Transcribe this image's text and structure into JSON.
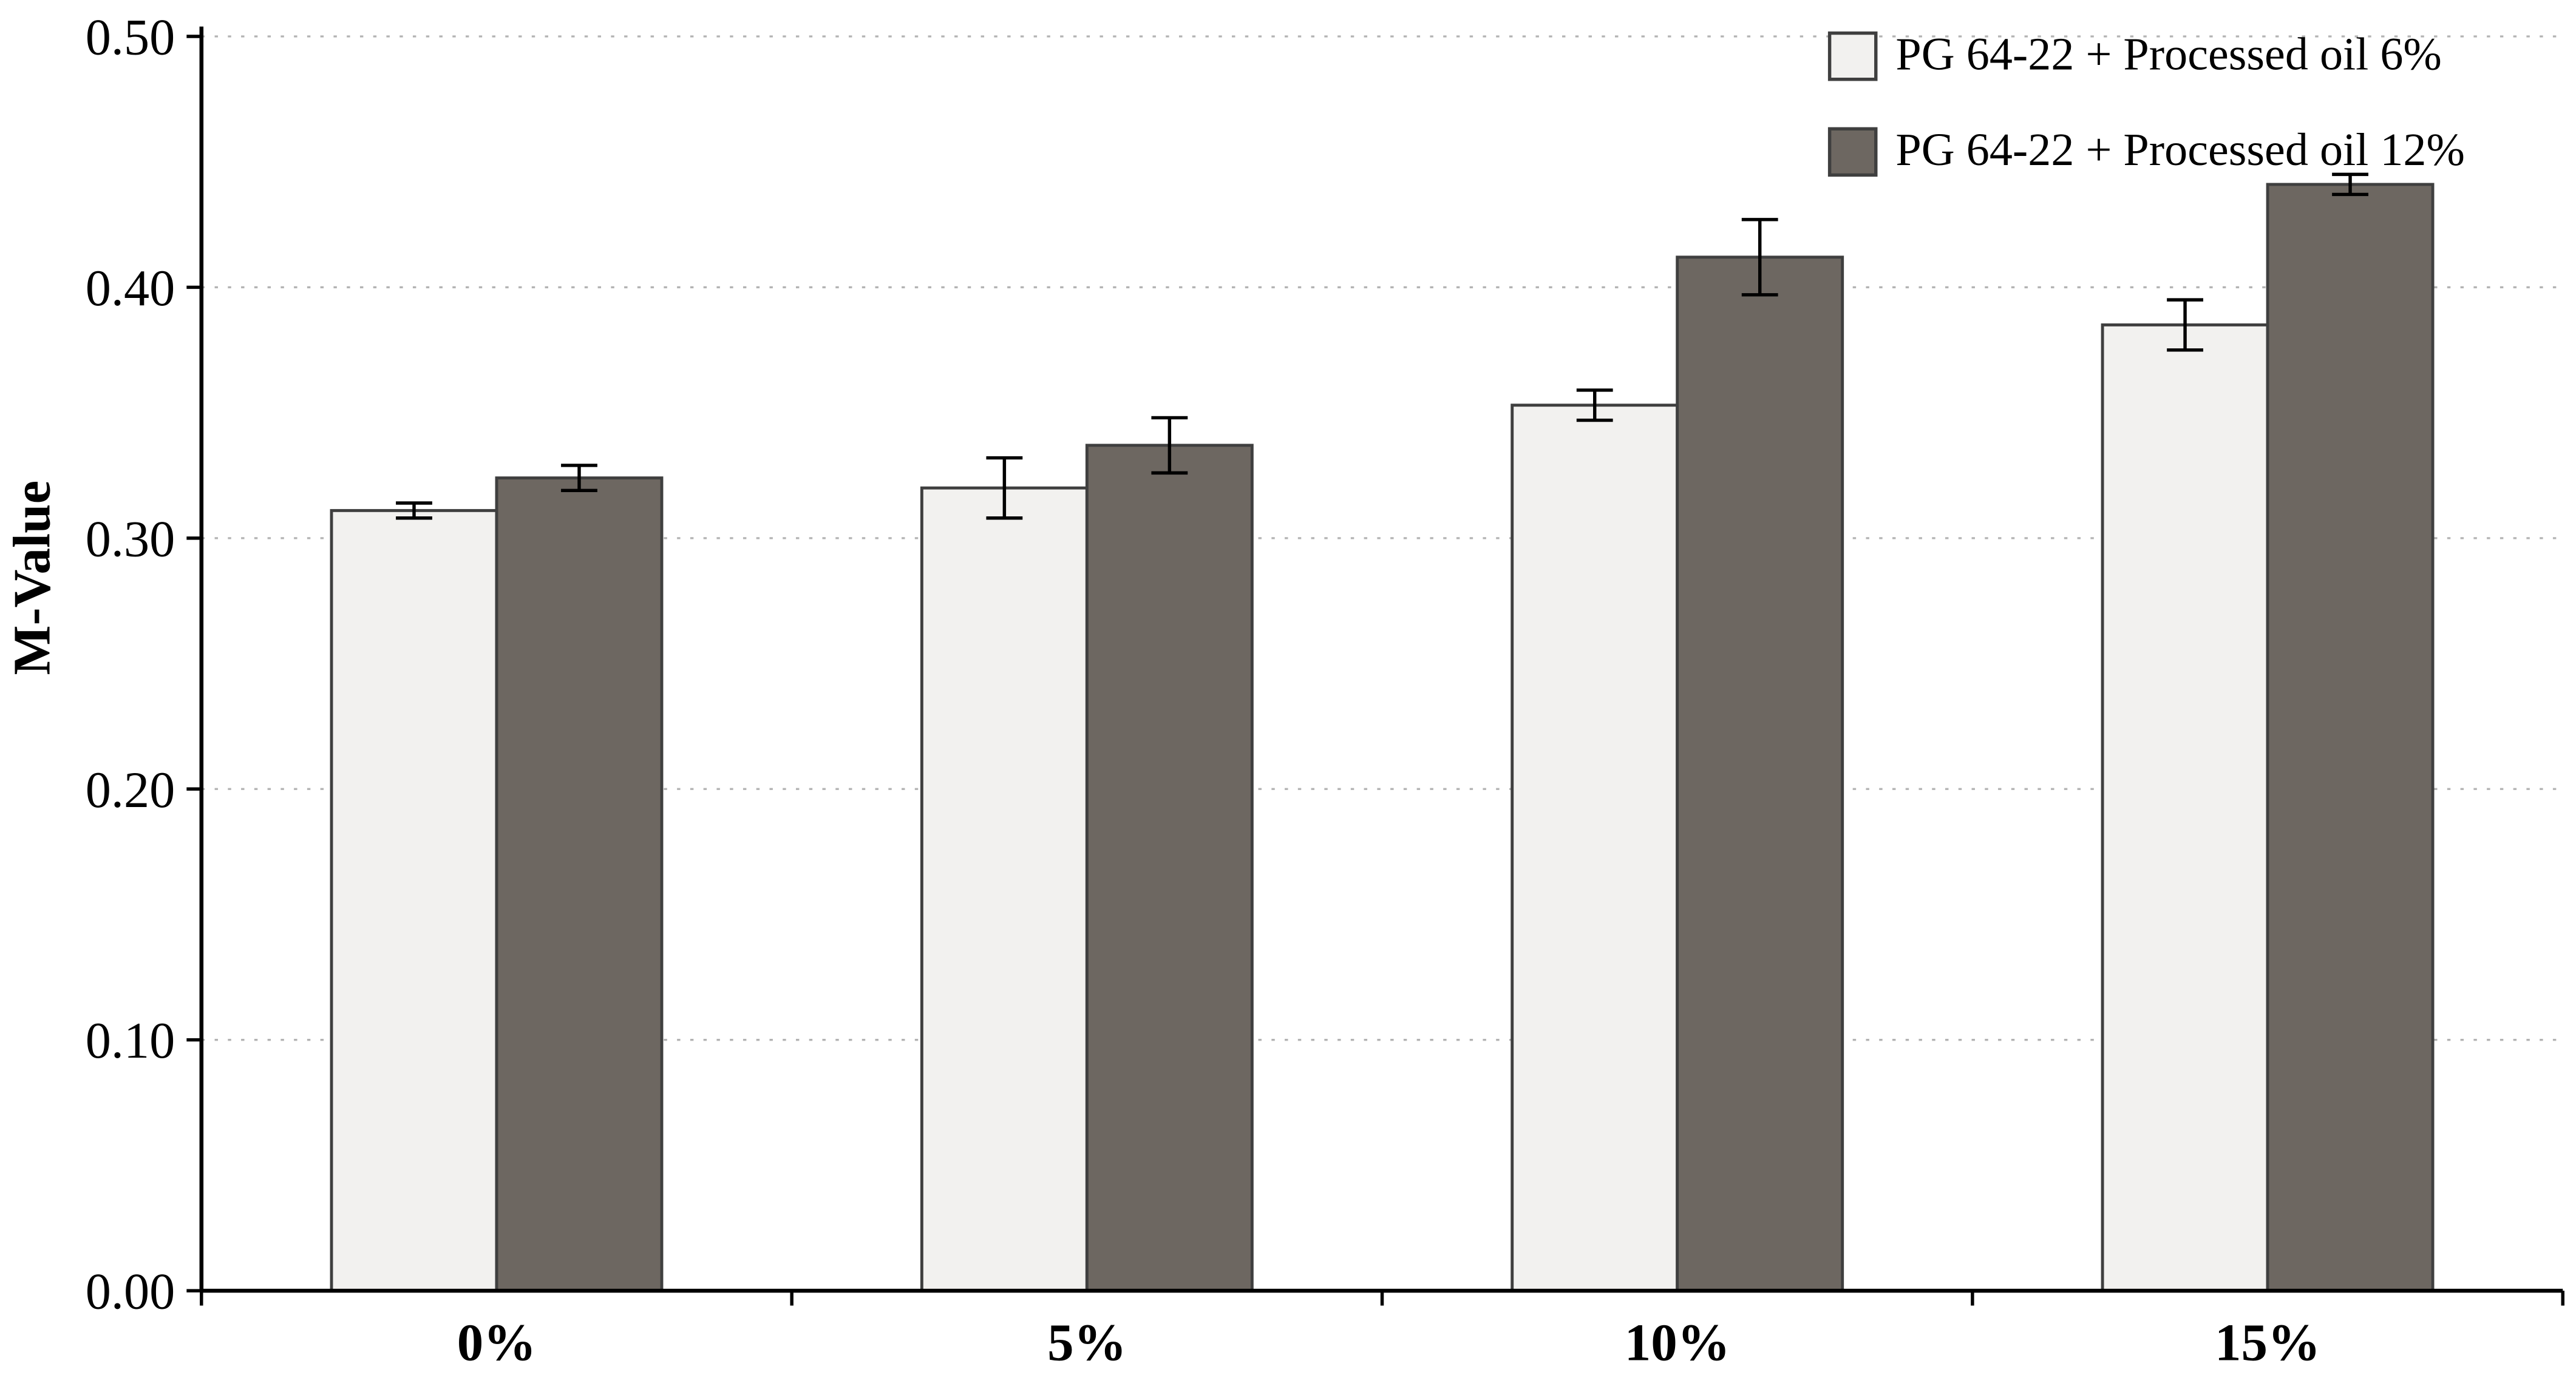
{
  "figure": {
    "background": "#ffffff",
    "grid_color": "#b3b3b3",
    "axis_color": "#000000"
  },
  "chart_data": {
    "type": "bar",
    "title": "",
    "xlabel": "",
    "ylabel": "M-Value",
    "categories": [
      "0%",
      "5%",
      "10%",
      "15%"
    ],
    "ylim": [
      0.0,
      0.5
    ],
    "ytick_step": 0.1,
    "ytick_decimals": 2,
    "grid": "horizontal-dotted",
    "legend_position": "top-right",
    "series": [
      {
        "name": "PG 64-22 + Processed oil 6%",
        "color": "#f2f1ef",
        "border": "#3f3f3f",
        "values": [
          0.311,
          0.32,
          0.353,
          0.385
        ],
        "errors": [
          0.003,
          0.012,
          0.006,
          0.01
        ]
      },
      {
        "name": "PG 64-22 + Processed oil 12%",
        "color": "#6d6761",
        "border": "#3f3f3f",
        "values": [
          0.324,
          0.337,
          0.412,
          0.441
        ],
        "errors": [
          0.005,
          0.011,
          0.015,
          0.004
        ]
      }
    ]
  }
}
